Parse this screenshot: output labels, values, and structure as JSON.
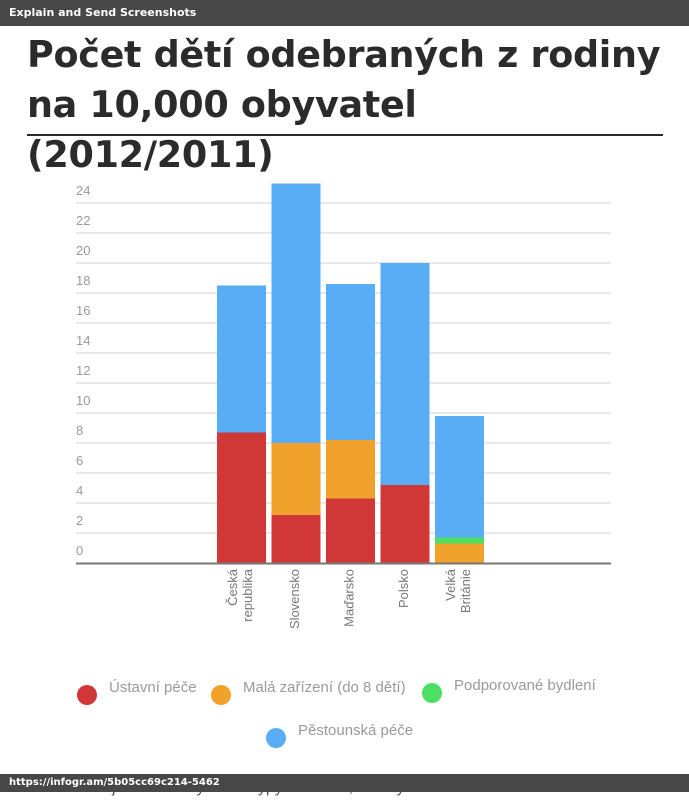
{
  "topbar": {
    "title": "Explain and Send Screenshots"
  },
  "header": {
    "title": "Počet dětí odebraných z rodiny na 10,000 obyvatel (2012/2011)"
  },
  "bottom_text": "Barevně jsou odlišeny různé typy umístění, v kterých se děti",
  "bottombar": {
    "url": "https://infogr.am/5b05cc69c214-5462"
  },
  "colors": {
    "ustavni": "#d03838",
    "mala": "#f0a22c",
    "podporovane": "#4ddf61",
    "pestounska": "#58adf5"
  },
  "chart_data": {
    "type": "bar",
    "stacked": true,
    "categories": [
      "Česká republika",
      "Slovensko",
      "Maďarsko",
      "Polsko",
      "Velká Británie"
    ],
    "series": [
      {
        "name": "Ústavní péče",
        "values": [
          8.7,
          3.2,
          4.3,
          5.2,
          0
        ]
      },
      {
        "name": "Malá zařízení (do 8 dětí)",
        "values": [
          0,
          4.8,
          3.9,
          0,
          1.3
        ]
      },
      {
        "name": "Podporované bydlení",
        "values": [
          0,
          0,
          0,
          0,
          0.4
        ]
      },
      {
        "name": "Pěstounská péče",
        "values": [
          9.8,
          17.3,
          10.4,
          14.8,
          8.1
        ]
      }
    ],
    "y_ticks": [
      "0",
      "2",
      "4",
      "6",
      "8",
      "10",
      "12",
      "14",
      "16",
      "18",
      "20",
      "22",
      "24"
    ],
    "ylim": [
      0,
      25
    ],
    "grid": true,
    "legend": "bottom"
  }
}
